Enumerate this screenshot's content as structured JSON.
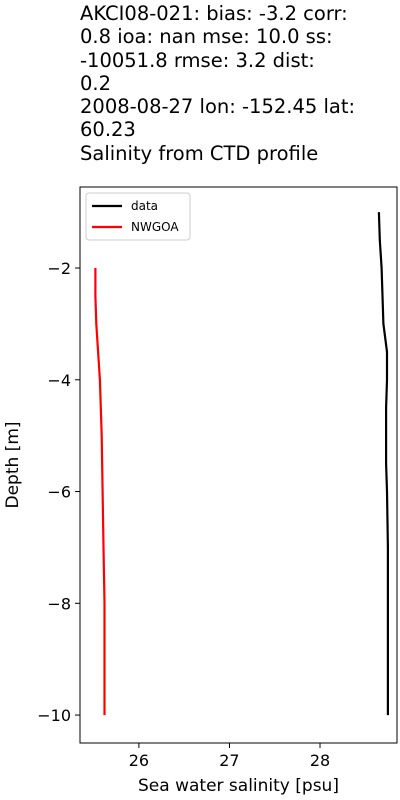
{
  "chart_data": {
    "type": "line",
    "title_lines": [
      "AKCI08-021: bias: -3.2  corr:",
      "0.8  ioa: nan  mse: 10.0  ss:",
      "-10051.8  rmse: 3.2  dist:",
      "0.2",
      "2008-08-27 lon: -152.45 lat:",
      "60.23",
      "Salinity from CTD profile"
    ],
    "xlabel": "Sea water salinity [psu]",
    "ylabel": "Depth [m]",
    "xlim": [
      25.35,
      28.85
    ],
    "ylim": [
      -10.5,
      -0.55
    ],
    "xticks": [
      26,
      27,
      28
    ],
    "yticks": [
      -2,
      -4,
      -6,
      -8,
      -10
    ],
    "grid": false,
    "legend_position": "top-left",
    "series": [
      {
        "name": "data",
        "color": "#000000",
        "x": [
          28.65,
          28.66,
          28.68,
          28.69,
          28.7,
          28.74,
          28.74,
          28.73,
          28.73,
          28.73,
          28.74,
          28.75,
          28.75,
          28.75,
          28.75
        ],
        "y": [
          -1.0,
          -1.5,
          -2.0,
          -2.5,
          -3.0,
          -3.5,
          -4.0,
          -4.5,
          -5.0,
          -5.5,
          -6.0,
          -7.0,
          -8.0,
          -9.0,
          -10.0
        ]
      },
      {
        "name": "NWGOA",
        "color": "#ff0000",
        "x": [
          25.52,
          25.52,
          25.53,
          25.55,
          25.57,
          25.59,
          25.6,
          25.61,
          25.62,
          25.62,
          25.62
        ],
        "y": [
          -2.0,
          -2.5,
          -3.0,
          -3.5,
          -4.0,
          -5.0,
          -6.0,
          -7.0,
          -8.0,
          -9.0,
          -10.0
        ]
      }
    ]
  }
}
